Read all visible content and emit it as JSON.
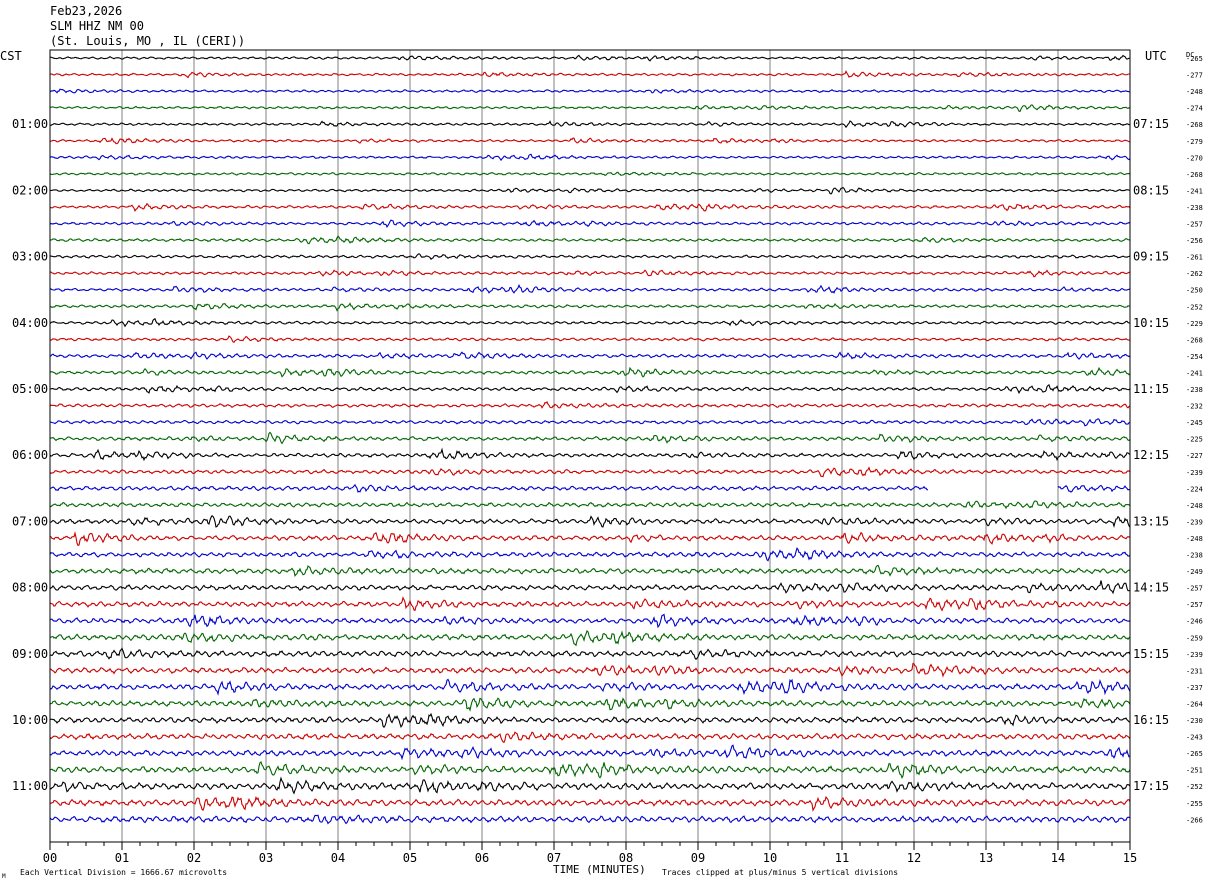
{
  "header": {
    "date": "Feb23,2026",
    "station": "SLM HHZ NM 00",
    "location": "(St. Louis, MO , IL (CERI))"
  },
  "labels": {
    "left_zone": "CST",
    "right_zone": "UTC",
    "dc": "DC",
    "bottom_left_mark": "M",
    "scale_note": "Each Vertical Division = 1666.67 microvolts",
    "xlabel": "TIME (MINUTES)",
    "clip_note": "Traces clipped at plus/minus 5 vertical divisions"
  },
  "chart_data": {
    "type": "line",
    "title": "SLM HHZ NM 00",
    "xlabel": "TIME (MINUTES)",
    "x_ticks": [
      "00",
      "01",
      "02",
      "03",
      "04",
      "05",
      "06",
      "07",
      "08",
      "09",
      "10",
      "11",
      "12",
      "13",
      "14",
      "15"
    ],
    "xlim": [
      0,
      15
    ],
    "grid": true,
    "trace_colors": [
      "#000000",
      "#cc0000",
      "#0000cc",
      "#006600"
    ],
    "left_hour_labels": [
      "01:00",
      "02:00",
      "03:00",
      "04:00",
      "05:00",
      "06:00",
      "07:00",
      "08:00",
      "09:00",
      "10:00",
      "11:00"
    ],
    "right_hour_labels": [
      "07:15",
      "08:15",
      "09:15",
      "10:15",
      "11:15",
      "12:15",
      "13:15",
      "14:15",
      "15:15",
      "16:15",
      "17:15"
    ],
    "dc_offsets": [
      -265,
      -277,
      -248,
      -274,
      -268,
      -279,
      -270,
      -268,
      -241,
      -238,
      -257,
      -256,
      -261,
      -262,
      -250,
      -252,
      -229,
      -268,
      -254,
      -241,
      -238,
      -232,
      -245,
      -225,
      -227,
      -239,
      -224,
      -248,
      -239,
      -248,
      -238,
      -249,
      -257,
      -257,
      -246,
      -259,
      -239,
      -231,
      -237,
      -264,
      -230,
      -243,
      -265,
      -251,
      -252,
      -255,
      -266
    ],
    "amplitude_by_row": [
      0.5,
      0.5,
      0.5,
      0.5,
      0.5,
      0.5,
      0.5,
      0.5,
      0.5,
      0.6,
      0.6,
      0.6,
      0.6,
      0.6,
      0.6,
      0.6,
      0.6,
      0.6,
      0.7,
      0.7,
      0.7,
      0.7,
      0.7,
      0.8,
      0.8,
      0.8,
      0.9,
      0.9,
      1.0,
      1.0,
      1.0,
      1.1,
      1.1,
      1.1,
      1.1,
      1.2,
      1.2,
      1.2,
      1.2,
      1.2,
      1.2,
      1.2,
      1.2,
      1.3,
      1.3,
      1.3,
      1.3
    ],
    "data_gap": {
      "row": 26,
      "start_min": 12.2,
      "end_min": 14.0
    },
    "clip_divisions": 5
  }
}
